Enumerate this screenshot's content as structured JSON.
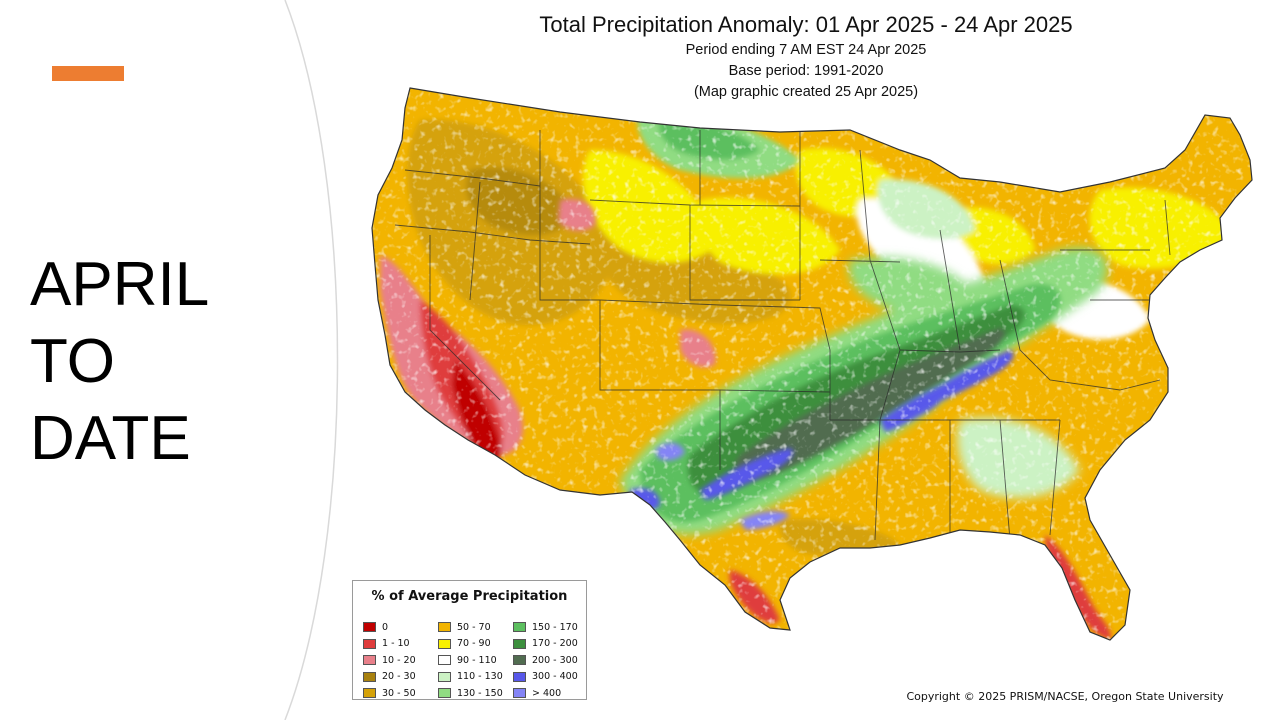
{
  "slide": {
    "title_lines": [
      "APRIL",
      "TO",
      "DATE"
    ]
  },
  "map": {
    "title": "Total Precipitation Anomaly: 01 Apr 2025 - 24 Apr 2025",
    "subtitles": [
      "Period ending 7 AM EST 24 Apr 2025",
      "Base period: 1991-2020",
      "(Map graphic created 25 Apr 2025)"
    ],
    "legend": {
      "title": "% of Average Precipitation",
      "items": [
        {
          "label": "0",
          "color": "#c00000"
        },
        {
          "label": "1 - 10",
          "color": "#df3c3c"
        },
        {
          "label": "10 - 20",
          "color": "#e8808a"
        },
        {
          "label": "20 - 30",
          "color": "#a8810f"
        },
        {
          "label": "30 - 50",
          "color": "#d5a208"
        },
        {
          "label": "50 - 70",
          "color": "#f2b400"
        },
        {
          "label": "70 - 90",
          "color": "#f8f000"
        },
        {
          "label": "90 - 110",
          "color": "#ffffff"
        },
        {
          "label": "110 - 130",
          "color": "#ccf2c4"
        },
        {
          "label": "130 - 150",
          "color": "#90dc82"
        },
        {
          "label": "150 - 170",
          "color": "#5cbf5f"
        },
        {
          "label": "170 - 200",
          "color": "#3c8f3e"
        },
        {
          "label": "200 - 300",
          "color": "#516c50"
        },
        {
          "label": "300 - 400",
          "color": "#5858ea"
        },
        {
          "label": "> 400",
          "color": "#8484f6"
        }
      ]
    },
    "copyright": "Copyright © 2025 PRISM/NACSE, Oregon State University"
  },
  "colors": {
    "accent": "#ed7d31",
    "panel_curve": "#d9d9d9"
  }
}
